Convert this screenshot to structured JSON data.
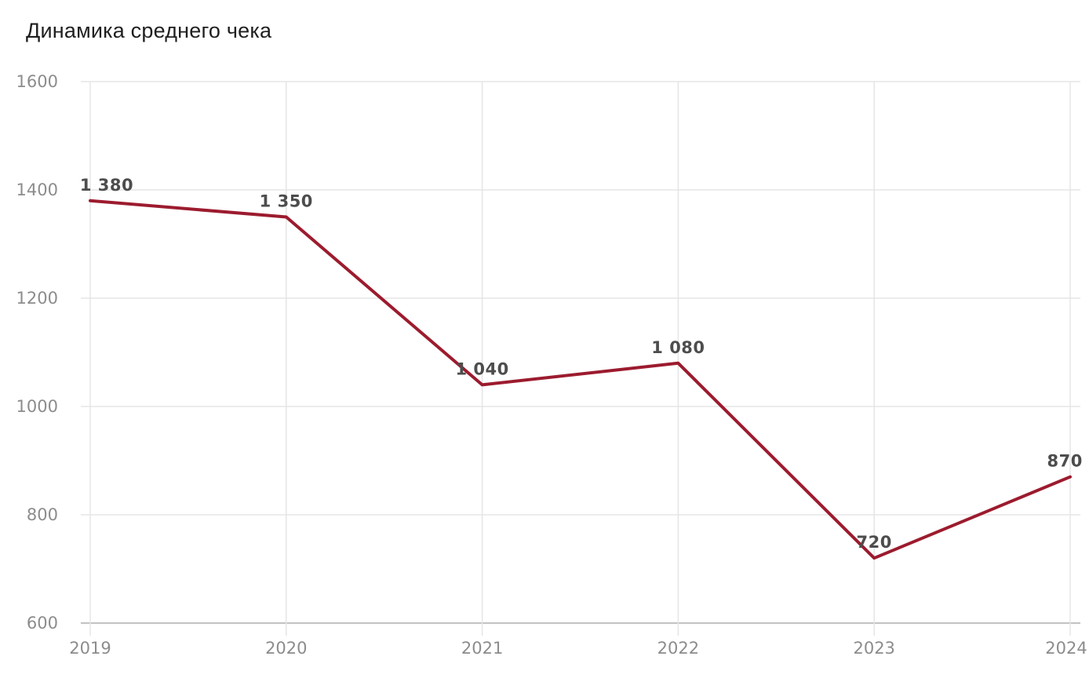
{
  "chart": {
    "title": "Динамика среднего чека"
  },
  "chart_data": {
    "type": "line",
    "title": "Динамика среднего чека",
    "x": [
      "2019",
      "2020",
      "2021",
      "2022",
      "2023",
      "2024"
    ],
    "values": [
      1380,
      1350,
      1040,
      1080,
      720,
      870
    ],
    "point_labels": [
      "1 380",
      "1 350",
      "1 040",
      "1 080",
      "720",
      "870"
    ],
    "xlabel": "",
    "ylabel": "",
    "ylim": [
      600,
      1600
    ],
    "yticks": [
      600,
      800,
      1000,
      1200,
      1400,
      1600
    ],
    "grid": true,
    "legend": false,
    "colors": {
      "line": "#9C1B2E",
      "grid": "#E5E5E5",
      "baseline": "#C2C2C2",
      "axis_text": "#8C8C8C",
      "point_label": "#4D4D4D",
      "title": "#1F1F1F"
    }
  }
}
